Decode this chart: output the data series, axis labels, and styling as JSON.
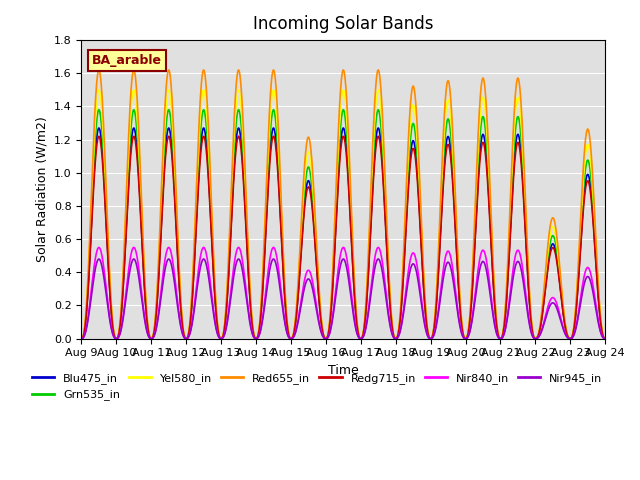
{
  "title": "Incoming Solar Bands",
  "xlabel": "Time",
  "ylabel": "Solar Radiation (W/m2)",
  "ylim": [
    0,
    1.8
  ],
  "xtick_positions": [
    0,
    1,
    2,
    3,
    4,
    5,
    6,
    7,
    8,
    9,
    10,
    11,
    12,
    13,
    14,
    15
  ],
  "xtick_labels": [
    "Aug 9",
    "Aug 10",
    "Aug 11",
    "Aug 12",
    "Aug 13",
    "Aug 14",
    "Aug 15",
    "Aug 16",
    "Aug 17",
    "Aug 18",
    "Aug 19",
    "Aug 20",
    "Aug 21",
    "Aug 22",
    "Aug 23",
    "Aug 24"
  ],
  "annotation_text": "BA_arable",
  "annotation_color": "#8B0000",
  "annotation_bg": "#FFFF99",
  "annotation_border": "#8B0000",
  "background_color": "#E0E0E0",
  "bands": [
    {
      "name": "Blu475_in",
      "color": "#0000CC",
      "peak": 1.27,
      "lw": 1.2
    },
    {
      "name": "Grn535_in",
      "color": "#00CC00",
      "peak": 1.38,
      "lw": 1.2
    },
    {
      "name": "Yel580_in",
      "color": "#FFFF00",
      "peak": 1.5,
      "lw": 1.2
    },
    {
      "name": "Red655_in",
      "color": "#FF8C00",
      "peak": 1.62,
      "lw": 1.2
    },
    {
      "name": "Redg715_in",
      "color": "#CC0000",
      "peak": 1.22,
      "lw": 1.2
    },
    {
      "name": "Nir840_in",
      "color": "#FF00FF",
      "peak": 0.55,
      "lw": 1.2
    },
    {
      "name": "Nir945_in",
      "color": "#9900CC",
      "peak": 0.48,
      "lw": 1.2
    }
  ],
  "n_days": 15,
  "points_per_day": 300,
  "day_peaks": [
    1.0,
    1.0,
    1.0,
    1.0,
    1.0,
    1.0,
    0.75,
    1.0,
    1.0,
    0.94,
    0.96,
    0.97,
    0.97,
    0.45,
    0.78
  ],
  "ytick_labels": [
    "0.0",
    "0.2",
    "0.4",
    "0.6",
    "0.8",
    "1.0",
    "1.2",
    "1.4",
    "1.6",
    "1.8"
  ]
}
